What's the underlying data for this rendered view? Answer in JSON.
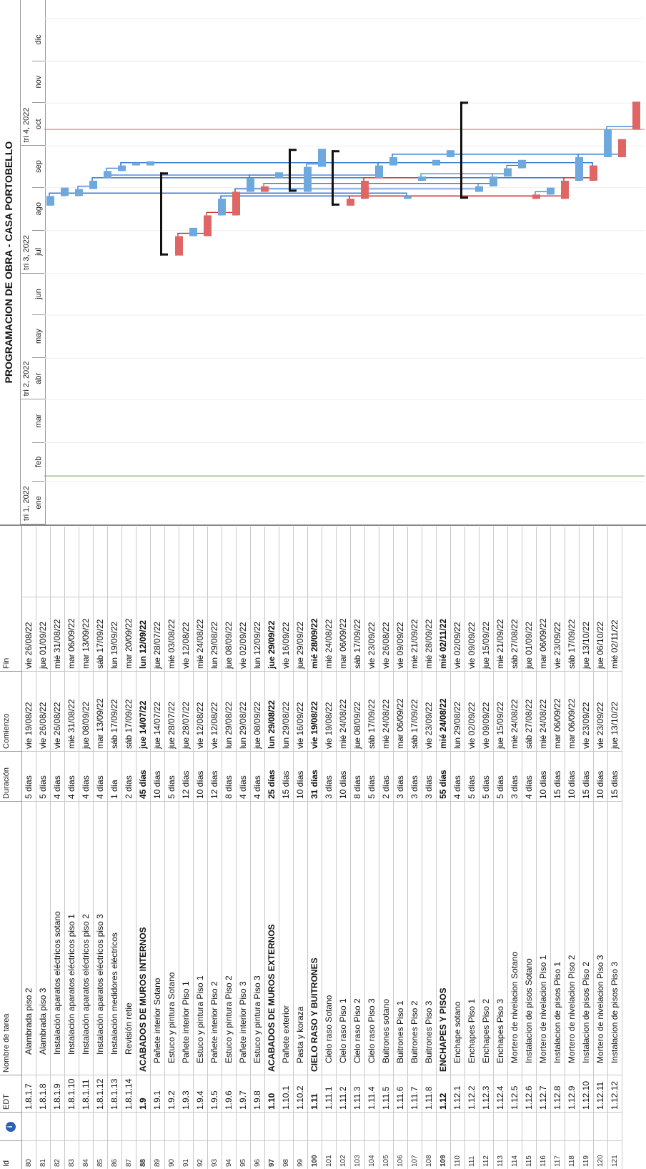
{
  "title": "PROGRAMACION DE OBRA - CASA PORTOBELLO",
  "columns": {
    "id": "Id",
    "edt": "EDT",
    "name": "Nombre de tarea",
    "duration": "Duración",
    "start": "Comienzo",
    "end": "Fin"
  },
  "timeline": {
    "quarters": [
      "tri 1, 2022",
      "tri 2, 2022",
      "tri 3, 2022",
      "tri 4, 2022"
    ],
    "months": [
      "ene",
      "feb",
      "mar",
      "abr",
      "may",
      "jun",
      "jul",
      "ago",
      "sep",
      "oct",
      "nov",
      "dic"
    ]
  },
  "colors": {
    "bar_normal": "#6fa8dc",
    "bar_critical": "#e06666",
    "link_normal": "#2f75d0",
    "link_critical": "#d62728",
    "summary": "#111111",
    "progress_line": "#6aa84f"
  },
  "rows": [
    {
      "id": "80",
      "edt": "1.8.1.7",
      "name": "Alambrada piso 2",
      "dur": "5 días",
      "start": "vie 19/08/22",
      "end": "vie 26/08/22",
      "indent": 2,
      "s": 230,
      "e": 237,
      "crit": false,
      "summary": false
    },
    {
      "id": "81",
      "edt": "1.8.1.8",
      "name": "Alambrada piso 3",
      "dur": "5 días",
      "start": "vie 26/08/22",
      "end": "jue 01/09/22",
      "indent": 2,
      "s": 237,
      "e": 243,
      "crit": false,
      "summary": false
    },
    {
      "id": "82",
      "edt": "1.8.1.9",
      "name": "Instalación aparatos eléctricos sotano",
      "dur": "4 días",
      "start": "vie 26/08/22",
      "end": "mié 31/08/22",
      "indent": 2,
      "s": 237,
      "e": 242,
      "crit": false,
      "summary": false
    },
    {
      "id": "83",
      "edt": "1.8.1.10",
      "name": "Instalación aparatos eléctricos piso 1",
      "dur": "4 días",
      "start": "mié 31/08/22",
      "end": "mar 06/09/22",
      "indent": 2,
      "s": 242,
      "e": 248,
      "crit": false,
      "summary": false
    },
    {
      "id": "84",
      "edt": "1.8.1.11",
      "name": "Instalación aparatos eléctricos piso 2",
      "dur": "4 días",
      "start": "jue 08/09/22",
      "end": "mar 13/09/22",
      "indent": 2,
      "s": 250,
      "e": 255,
      "crit": false,
      "summary": false
    },
    {
      "id": "85",
      "edt": "1.8.1.12",
      "name": "Instalación aparatos eléctricos piso 3",
      "dur": "4 días",
      "start": "mar 13/09/22",
      "end": "sáb 17/09/22",
      "indent": 2,
      "s": 255,
      "e": 259,
      "crit": false,
      "summary": false
    },
    {
      "id": "86",
      "edt": "1.8.1.13",
      "name": "Instalación medidores eléctricos",
      "dur": "1 día",
      "start": "sáb 17/09/22",
      "end": "lun 19/09/22",
      "indent": 2,
      "s": 259,
      "e": 261,
      "crit": false,
      "summary": false
    },
    {
      "id": "87",
      "edt": "1.8.1.14",
      "name": "Revisión retie",
      "dur": "2 días",
      "start": "sáb 17/09/22",
      "end": "mar 20/09/22",
      "indent": 2,
      "s": 259,
      "e": 262,
      "crit": false,
      "summary": false
    },
    {
      "id": "88",
      "edt": "1.9",
      "name": "ACABADOS DE MUROS INTERNOS",
      "dur": "45 días",
      "start": "jue 14/07/22",
      "end": "lun 12/09/22",
      "indent": 0,
      "s": 194,
      "e": 254,
      "crit": false,
      "summary": true
    },
    {
      "id": "89",
      "edt": "1.9.1",
      "name": "Pañete interior Sotano",
      "dur": "10 días",
      "start": "jue 14/07/22",
      "end": "jue 28/07/22",
      "indent": 1,
      "s": 194,
      "e": 208,
      "crit": true,
      "summary": false
    },
    {
      "id": "90",
      "edt": "1.9.2",
      "name": "Estuco y pintura Sotano",
      "dur": "5 días",
      "start": "jue 28/07/22",
      "end": "mié 03/08/22",
      "indent": 1,
      "s": 208,
      "e": 214,
      "crit": false,
      "summary": false
    },
    {
      "id": "91",
      "edt": "1.9.3",
      "name": "Pañete interior Piso 1",
      "dur": "12 días",
      "start": "jue 28/07/22",
      "end": "vie 12/08/22",
      "indent": 1,
      "s": 208,
      "e": 223,
      "crit": true,
      "summary": false
    },
    {
      "id": "92",
      "edt": "1.9.4",
      "name": "Estuco y pintura Piso 1",
      "dur": "10 días",
      "start": "vie 12/08/22",
      "end": "mié 24/08/22",
      "indent": 1,
      "s": 223,
      "e": 235,
      "crit": false,
      "summary": false
    },
    {
      "id": "93",
      "edt": "1.9.5",
      "name": "Pañete interior Piso 2",
      "dur": "12 días",
      "start": "vie 12/08/22",
      "end": "lun 29/08/22",
      "indent": 1,
      "s": 223,
      "e": 240,
      "crit": true,
      "summary": false
    },
    {
      "id": "94",
      "edt": "1.9.6",
      "name": "Estuco y pintura Piso 2",
      "dur": "8 días",
      "start": "lun 29/08/22",
      "end": "jue 08/09/22",
      "indent": 1,
      "s": 240,
      "e": 250,
      "crit": false,
      "summary": false
    },
    {
      "id": "95",
      "edt": "1.9.7",
      "name": "Pañete interior Piso 3",
      "dur": "4 días",
      "start": "lun 29/08/22",
      "end": "vie 02/09/22",
      "indent": 1,
      "s": 240,
      "e": 244,
      "crit": true,
      "summary": false
    },
    {
      "id": "96",
      "edt": "1.9.8",
      "name": "Estuco y pintura Piso 3",
      "dur": "4 días",
      "start": "jue 08/09/22",
      "end": "lun 12/09/22",
      "indent": 1,
      "s": 250,
      "e": 254,
      "crit": false,
      "summary": false
    },
    {
      "id": "97",
      "edt": "1.10",
      "name": "ACABADOS DE MUROS EXTERNOS",
      "dur": "25 días",
      "start": "lun 29/08/22",
      "end": "jue 29/09/22",
      "indent": 0,
      "s": 240,
      "e": 271,
      "crit": false,
      "summary": true
    },
    {
      "id": "98",
      "edt": "1.10.1",
      "name": "Pañete exterior",
      "dur": "15 días",
      "start": "lun 29/08/22",
      "end": "vie 16/09/22",
      "indent": 1,
      "s": 240,
      "e": 258,
      "crit": false,
      "summary": false
    },
    {
      "id": "99",
      "edt": "1.10.2",
      "name": "Pasta y koraza",
      "dur": "10 días",
      "start": "vie 16/09/22",
      "end": "jue 29/09/22",
      "indent": 1,
      "s": 258,
      "e": 271,
      "crit": false,
      "summary": false
    },
    {
      "id": "100",
      "edt": "1.11",
      "name": "CIELO RASO Y BUITRONES",
      "dur": "31 días",
      "start": "vie 19/08/22",
      "end": "mié 28/09/22",
      "indent": 0,
      "s": 230,
      "e": 270,
      "crit": false,
      "summary": true
    },
    {
      "id": "101",
      "edt": "1.11.1",
      "name": "Cielo raso Sotano",
      "dur": "3 días",
      "start": "vie 19/08/22",
      "end": "mié 24/08/22",
      "indent": 1,
      "s": 230,
      "e": 235,
      "crit": true,
      "summary": false
    },
    {
      "id": "102",
      "edt": "1.11.2",
      "name": "Cielo raso Piso 1",
      "dur": "10 días",
      "start": "mié 24/08/22",
      "end": "mar 06/09/22",
      "indent": 1,
      "s": 235,
      "e": 248,
      "crit": true,
      "summary": false
    },
    {
      "id": "103",
      "edt": "1.11.3",
      "name": "Cielo raso Piso 2",
      "dur": "8 días",
      "start": "jue 08/09/22",
      "end": "sáb 17/09/22",
      "indent": 1,
      "s": 250,
      "e": 259,
      "crit": false,
      "summary": false
    },
    {
      "id": "104",
      "edt": "1.11.4",
      "name": "Cielo raso Piso 3",
      "dur": "5 días",
      "start": "sáb 17/09/22",
      "end": "vie 23/09/22",
      "indent": 1,
      "s": 259,
      "e": 265,
      "crit": false,
      "summary": false
    },
    {
      "id": "105",
      "edt": "1.11.5",
      "name": "Buitrones sotano",
      "dur": "2 días",
      "start": "mié 24/08/22",
      "end": "vie 26/08/22",
      "indent": 1,
      "s": 235,
      "e": 237,
      "crit": false,
      "summary": false
    },
    {
      "id": "106",
      "edt": "1.11.6",
      "name": "Buitrones Piso 1",
      "dur": "3 días",
      "start": "mar 06/09/22",
      "end": "vie 09/09/22",
      "indent": 1,
      "s": 248,
      "e": 251,
      "crit": false,
      "summary": false
    },
    {
      "id": "107",
      "edt": "1.11.7",
      "name": "Buitrones Piso 2",
      "dur": "3 días",
      "start": "sáb 17/09/22",
      "end": "mié 21/09/22",
      "indent": 1,
      "s": 259,
      "e": 263,
      "crit": false,
      "summary": false
    },
    {
      "id": "108",
      "edt": "1.11.8",
      "name": "Buitrones Piso 3",
      "dur": "3 días",
      "start": "vie 23/09/22",
      "end": "mié 28/09/22",
      "indent": 1,
      "s": 265,
      "e": 270,
      "crit": false,
      "summary": false
    },
    {
      "id": "109",
      "edt": "1.12",
      "name": "ENCHAPES Y PISOS",
      "dur": "55 días",
      "start": "mié 24/08/22",
      "end": "mié 02/11/22",
      "indent": 0,
      "s": 235,
      "e": 305,
      "crit": false,
      "summary": true
    },
    {
      "id": "110",
      "edt": "1.12.1",
      "name": "Enchape sotano",
      "dur": "4 días",
      "start": "lun 29/08/22",
      "end": "vie 02/09/22",
      "indent": 1,
      "s": 240,
      "e": 244,
      "crit": false,
      "summary": false
    },
    {
      "id": "111",
      "edt": "1.12.2",
      "name": "Enchapes Piso 1",
      "dur": "5 días",
      "start": "vie 02/09/22",
      "end": "vie 09/09/22",
      "indent": 1,
      "s": 244,
      "e": 251,
      "crit": false,
      "summary": false
    },
    {
      "id": "112",
      "edt": "1.12.3",
      "name": "Enchapes Piso 2",
      "dur": "5 días",
      "start": "vie 09/09/22",
      "end": "jue 15/09/22",
      "indent": 1,
      "s": 251,
      "e": 257,
      "crit": false,
      "summary": false
    },
    {
      "id": "113",
      "edt": "1.12.4",
      "name": "Enchapes Piso 3",
      "dur": "5 días",
      "start": "jue 15/09/22",
      "end": "mié 21/09/22",
      "indent": 1,
      "s": 257,
      "e": 263,
      "crit": false,
      "summary": false
    },
    {
      "id": "114",
      "edt": "1.12.5",
      "name": "Mortero de nivelacion Sotano",
      "dur": "3 días",
      "start": "mié 24/08/22",
      "end": "sáb 27/08/22",
      "indent": 1,
      "s": 235,
      "e": 238,
      "crit": true,
      "summary": false
    },
    {
      "id": "115",
      "edt": "1.12.6",
      "name": "Instalacion de pisos Sotano",
      "dur": "4 días",
      "start": "sáb 27/08/22",
      "end": "jue 01/09/22",
      "indent": 1,
      "s": 238,
      "e": 243,
      "crit": false,
      "summary": false
    },
    {
      "id": "116",
      "edt": "1.12.7",
      "name": "Mortero de nivelacion Piso 1",
      "dur": "10 días",
      "start": "mié 24/08/22",
      "end": "mar 06/09/22",
      "indent": 1,
      "s": 235,
      "e": 248,
      "crit": true,
      "summary": false
    },
    {
      "id": "117",
      "edt": "1.12.8",
      "name": "Instalacion de pisos Piso 1",
      "dur": "15 días",
      "start": "mar 06/09/22",
      "end": "vie 23/09/22",
      "indent": 1,
      "s": 248,
      "e": 265,
      "crit": false,
      "summary": false
    },
    {
      "id": "118",
      "edt": "1.12.9",
      "name": "Mortero de nivelacion Piso 2",
      "dur": "10 días",
      "start": "mar 06/09/22",
      "end": "sáb 17/09/22",
      "indent": 1,
      "s": 248,
      "e": 259,
      "crit": true,
      "summary": false
    },
    {
      "id": "119",
      "edt": "1.12.10",
      "name": "Instalacion de pisos Piso 2",
      "dur": "15 días",
      "start": "vie 23/09/22",
      "end": "jue 13/10/22",
      "indent": 1,
      "s": 265,
      "e": 285,
      "crit": false,
      "summary": false
    },
    {
      "id": "120",
      "edt": "1.12.11",
      "name": "Mortero de nivelacion Piso 3",
      "dur": "10 días",
      "start": "vie 23/09/22",
      "end": "jue 06/10/22",
      "indent": 1,
      "s": 265,
      "e": 278,
      "crit": true,
      "summary": false
    },
    {
      "id": "121",
      "edt": "1.12.12",
      "name": "Instalacion de pisos Piso 3",
      "dur": "15 días",
      "start": "jue 13/10/22",
      "end": "mié 02/11/22",
      "indent": 1,
      "s": 285,
      "e": 305,
      "crit": true,
      "summary": false
    }
  ]
}
